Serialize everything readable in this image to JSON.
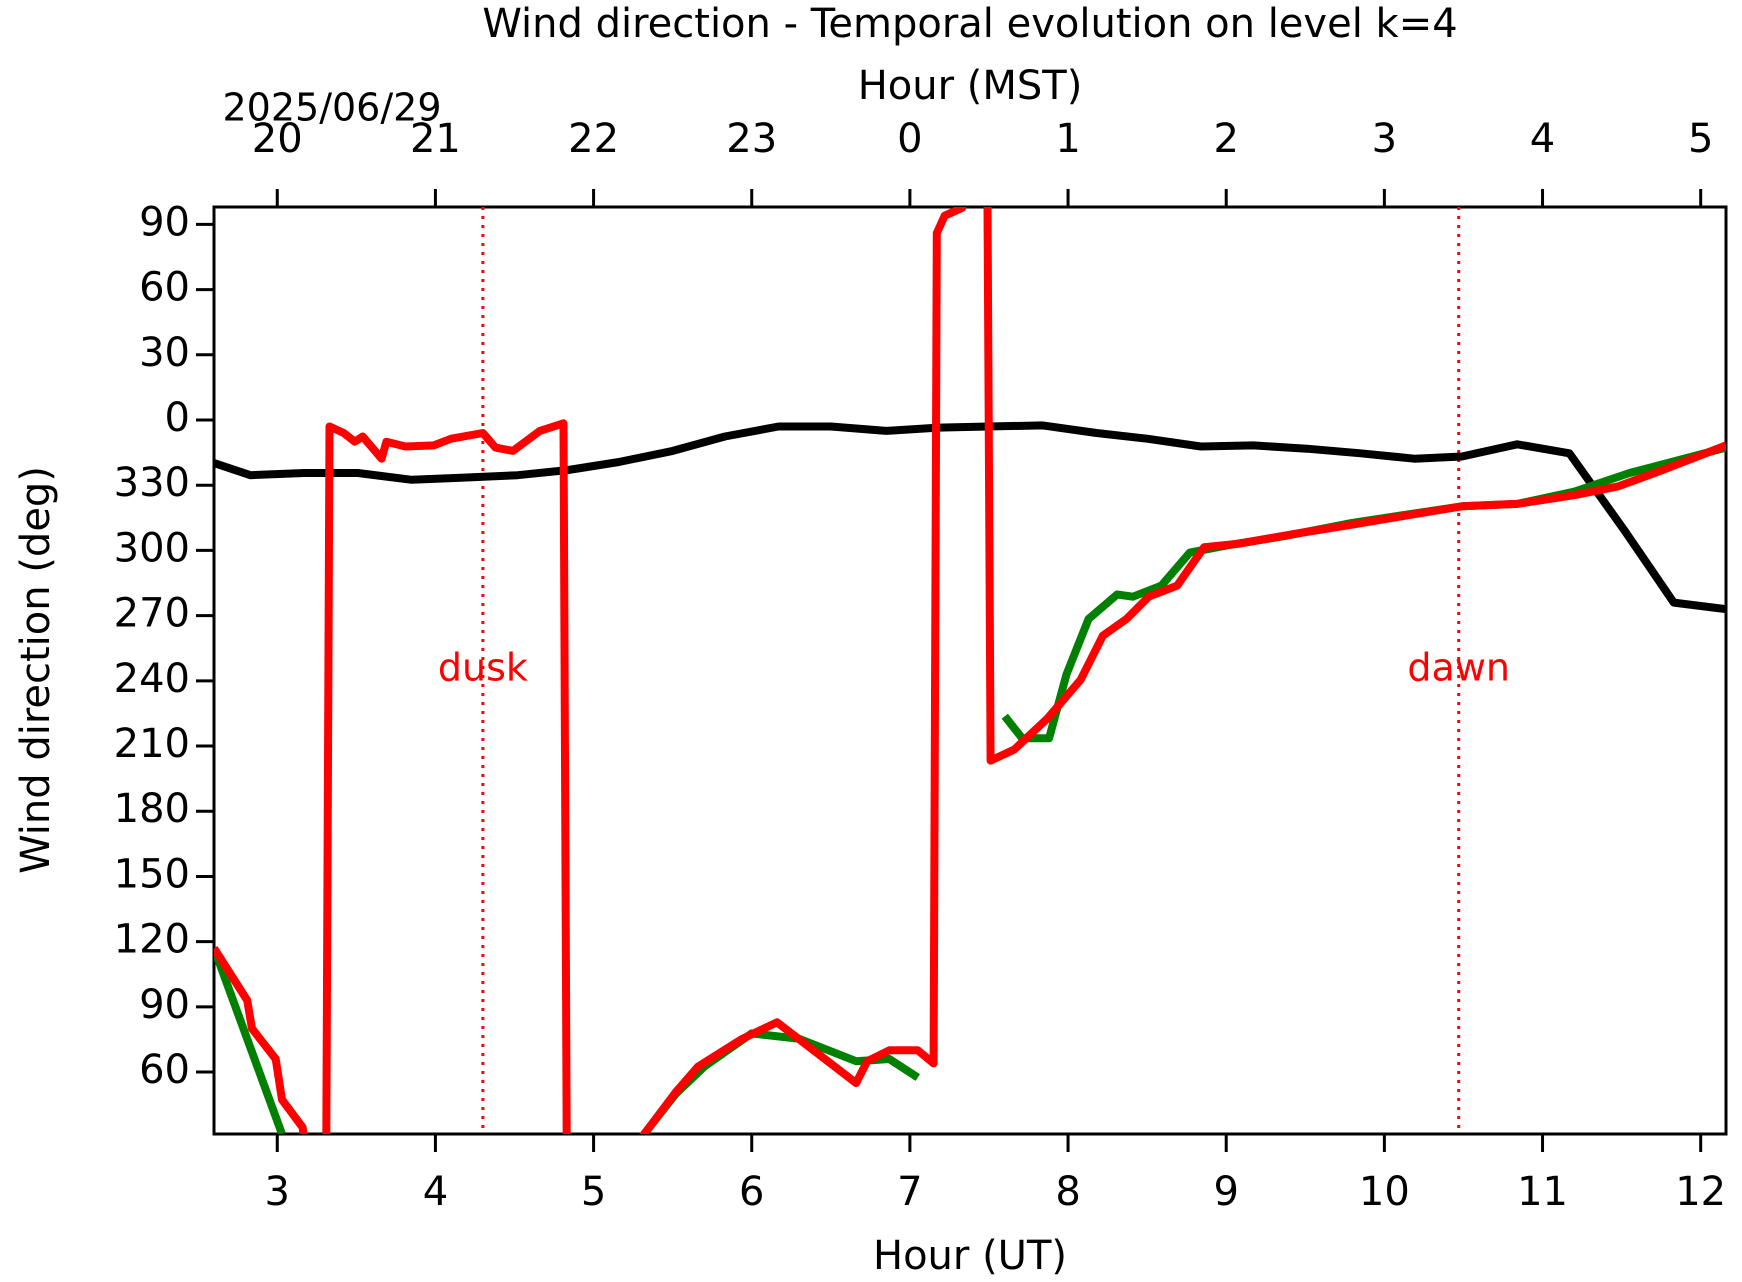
{
  "chart_data": {
    "type": "line",
    "title": "Wind direction - Temporal evolution on level k=4",
    "xlabel": "Hour (UT)",
    "ylabel": "Wind direction (deg)",
    "top_xlabel": "Hour (MST)",
    "top_date": "2025/06/29",
    "xlim": [
      2.6,
      12.16
    ],
    "ylim": [
      31.5,
      458
    ],
    "xticks": [
      3,
      4,
      5,
      6,
      7,
      8,
      9,
      10,
      11,
      12
    ],
    "top_xticks": [
      {
        "value": 3,
        "label": "20"
      },
      {
        "value": 4,
        "label": "21"
      },
      {
        "value": 5,
        "label": "22"
      },
      {
        "value": 6,
        "label": "23"
      },
      {
        "value": 7,
        "label": "0"
      },
      {
        "value": 8,
        "label": "1"
      },
      {
        "value": 9,
        "label": "2"
      },
      {
        "value": 10,
        "label": "3"
      },
      {
        "value": 11,
        "label": "4"
      },
      {
        "value": 12,
        "label": "5"
      }
    ],
    "yticks": [
      {
        "value": 450,
        "label": "90"
      },
      {
        "value": 420,
        "label": "60"
      },
      {
        "value": 390,
        "label": "30"
      },
      {
        "value": 360,
        "label": "0"
      },
      330,
      300,
      270,
      240,
      210,
      180,
      150,
      120,
      90,
      60
    ],
    "vlines": [
      {
        "x": 4.3,
        "label": "dusk",
        "color": "#ff0000"
      },
      {
        "x": 10.47,
        "label": "dawn",
        "color": "#ff0000"
      }
    ],
    "series": [
      {
        "name": "black",
        "color": "#000000",
        "x": [
          2.6,
          2.83,
          3.17,
          3.51,
          3.85,
          4.18,
          4.52,
          4.84,
          5.16,
          5.5,
          5.83,
          6.17,
          6.5,
          6.85,
          7.18,
          7.5,
          7.84,
          8.18,
          8.5,
          8.84,
          9.17,
          9.51,
          9.85,
          10.19,
          10.49,
          10.84,
          11.17,
          11.52,
          11.83,
          12.16
        ],
        "values": [
          340.2,
          334.6,
          335.6,
          335.6,
          332.5,
          333.5,
          334.6,
          337,
          340.7,
          345.8,
          352.4,
          357,
          357,
          355,
          356.5,
          357,
          357.5,
          354,
          351.4,
          347.8,
          348.3,
          346.8,
          344.7,
          342.2,
          343.2,
          348.8,
          344.7,
          309,
          276,
          273
        ]
      },
      {
        "name": "green",
        "color": "#008000",
        "x": [
          2.6,
          3.03,
          4.2,
          5.32,
          5.52,
          5.7,
          6.0,
          6.3,
          6.66,
          6.87,
          7.05,
          7.3,
          7.6,
          7.71,
          7.88,
          7.99,
          8.13,
          8.31,
          8.41,
          8.59,
          8.77,
          9.02,
          9.37,
          9.8,
          10.49,
          10.84,
          11.2,
          11.55,
          12.16
        ],
        "values": [
          117,
          31.5,
          null,
          31.5,
          50,
          62.5,
          77.8,
          75.3,
          65,
          66,
          57.5,
          null,
          223.7,
          213.6,
          213.6,
          243,
          268.5,
          279.7,
          278.7,
          283.8,
          299,
          302.5,
          306.6,
          312.7,
          320.3,
          321.4,
          327,
          335.6,
          347.3
        ]
      },
      {
        "name": "red",
        "color": "#ff0000",
        "x": [
          2.6,
          2.81,
          2.84,
          2.99,
          3.03,
          3.16,
          3.17,
          3.24,
          3.31,
          3.33,
          3.42,
          3.49,
          3.54,
          3.66,
          3.69,
          3.81,
          3.99,
          4.1,
          4.3,
          4.38,
          4.49,
          4.66,
          4.81,
          4.83,
          5.06,
          5.3,
          5.52,
          5.66,
          5.94,
          6.16,
          6.48,
          6.66,
          6.73,
          6.87,
          7.05,
          7.15,
          7.17,
          7.22,
          7.33,
          7.35,
          7.42,
          7.49,
          7.51,
          7.66,
          7.87,
          8.08,
          8.22,
          8.37,
          8.51,
          8.69,
          8.86,
          9.07,
          9.43,
          9.78,
          10.49,
          10.84,
          11.2,
          11.48,
          11.76,
          12.16
        ],
        "values": [
          117,
          93,
          80,
          66,
          47.3,
          34.6,
          29.5,
          null,
          29.5,
          357,
          354,
          350,
          352.4,
          342.2,
          350,
          347.8,
          348.3,
          351.4,
          354,
          347.3,
          345.8,
          355,
          358.5,
          29.5,
          null,
          29.5,
          50.8,
          62.5,
          75.3,
          82.9,
          65,
          54.9,
          65,
          70,
          70,
          64,
          446,
          454,
          457.6,
          467,
          null,
          467,
          203.3,
          208.4,
          222.7,
          240.5,
          260.8,
          268.5,
          278.7,
          283.8,
          301.5,
          303,
          307.6,
          311.7,
          320.3,
          321.4,
          325.4,
          329.5,
          337,
          348.3
        ]
      }
    ]
  }
}
